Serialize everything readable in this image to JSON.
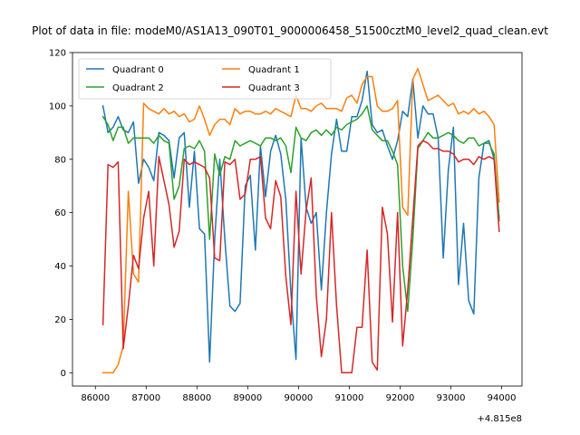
{
  "chart_data": {
    "type": "line",
    "title": "Plot of data in file: modeM0/AS1A13_090T01_9000006458_51500cztM0_level2_quad_clean.evt",
    "xlabel": "",
    "ylabel": "",
    "x_offset_label": "+4.815e8",
    "xlim": [
      85550,
      94400
    ],
    "ylim": [
      -5,
      120
    ],
    "x_ticks": [
      86000,
      87000,
      88000,
      89000,
      90000,
      91000,
      92000,
      93000,
      94000
    ],
    "x_tick_labels": [
      "86000",
      "87000",
      "88000",
      "89000",
      "90000",
      "91000",
      "92000",
      "93000",
      "94000"
    ],
    "y_ticks": [
      0,
      20,
      40,
      60,
      80,
      100,
      120
    ],
    "y_tick_labels": [
      "0",
      "20",
      "40",
      "60",
      "80",
      "100",
      "120"
    ],
    "grid": false,
    "legend_placement": "top-left",
    "legend_columns": 2,
    "x": [
      86150,
      86250,
      86350,
      86450,
      86550,
      86650,
      86750,
      86850,
      86950,
      87050,
      87150,
      87250,
      87350,
      87450,
      87550,
      87650,
      87750,
      87850,
      87950,
      88050,
      88150,
      88250,
      88350,
      88450,
      88550,
      88650,
      88750,
      88850,
      88950,
      89050,
      89150,
      89250,
      89350,
      89450,
      89550,
      89650,
      89750,
      89850,
      89950,
      90050,
      90150,
      90250,
      90350,
      90450,
      90550,
      90650,
      90750,
      90850,
      90950,
      91050,
      91150,
      91250,
      91350,
      91450,
      91550,
      91650,
      91750,
      91850,
      91950,
      92050,
      92150,
      92250,
      92350,
      92450,
      92550,
      92650,
      92750,
      92850,
      92950,
      93050,
      93150,
      93250,
      93350,
      93450,
      93550,
      93650,
      93750,
      93850,
      93950
    ],
    "series": [
      {
        "name": "Quadrant 0",
        "color": "#1f77b4",
        "values": [
          100,
          90,
          92,
          96,
          91,
          90,
          94,
          71,
          80,
          77,
          72,
          90,
          89,
          87,
          73,
          88,
          90,
          62,
          83,
          54,
          52,
          4,
          50,
          80,
          50,
          25,
          23,
          26,
          70,
          74,
          46,
          85,
          66,
          83,
          89,
          82,
          65,
          30,
          5,
          88,
          62,
          56,
          60,
          31,
          60,
          82,
          95,
          83,
          83,
          96,
          96,
          102,
          113,
          93,
          90,
          91,
          85,
          80,
          87,
          98,
          96,
          110,
          88,
          100,
          97,
          97,
          88,
          43,
          76,
          92,
          33,
          56,
          27,
          22,
          73,
          86,
          87,
          80,
          58
        ]
      },
      {
        "name": "Quadrant 1",
        "color": "#ff7f0e",
        "values": [
          0,
          0,
          0,
          3,
          10,
          68,
          37,
          34,
          101,
          99,
          98,
          97,
          99,
          97,
          98,
          96,
          97,
          94,
          95,
          100,
          95,
          89,
          93,
          95,
          95,
          93,
          99,
          97,
          98,
          98,
          97,
          97,
          98,
          97,
          99,
          98,
          97,
          96,
          104,
          99,
          99,
          98,
          100,
          101,
          99,
          99,
          99,
          98,
          103,
          104,
          101,
          108,
          111,
          111,
          100,
          98,
          98,
          99,
          102,
          62,
          59,
          110,
          114,
          108,
          102,
          103,
          104,
          102,
          100,
          101,
          97,
          98,
          97,
          99,
          97,
          98,
          96,
          93,
          64
        ]
      },
      {
        "name": "Quadrant 2",
        "color": "#2ca02c",
        "values": [
          96,
          93,
          87,
          92,
          92,
          86,
          88,
          88,
          88,
          88,
          86,
          89,
          87,
          86,
          65,
          70,
          84,
          85,
          84,
          87,
          83,
          50,
          82,
          74,
          81,
          80,
          87,
          85,
          86,
          87,
          86,
          85,
          88,
          88,
          87,
          88,
          85,
          75,
          92,
          88,
          87,
          90,
          91,
          89,
          91,
          89,
          92,
          91,
          93,
          94,
          95,
          97,
          100,
          91,
          89,
          87,
          87,
          83,
          78,
          40,
          23,
          50,
          84,
          87,
          90,
          88,
          88,
          89,
          90,
          89,
          87,
          86,
          88,
          88,
          85,
          86,
          86,
          82,
          57
        ]
      },
      {
        "name": "Quadrant 3",
        "color": "#d62728",
        "values": [
          18,
          78,
          77,
          79,
          9,
          25,
          44,
          39,
          58,
          68,
          40,
          81,
          72,
          63,
          47,
          53,
          80,
          78,
          79,
          78,
          77,
          73,
          43,
          42,
          79,
          78,
          80,
          65,
          67,
          80,
          80,
          81,
          58,
          54,
          72,
          66,
          36,
          18,
          68,
          37,
          61,
          73,
          29,
          6,
          20,
          60,
          25,
          0,
          0,
          0,
          17,
          17,
          46,
          4,
          1,
          62,
          52,
          19,
          60,
          10,
          31,
          58,
          85,
          87,
          86,
          84,
          84,
          83,
          83,
          82,
          79,
          80,
          80,
          78,
          81,
          80,
          81,
          80,
          53
        ]
      }
    ]
  }
}
